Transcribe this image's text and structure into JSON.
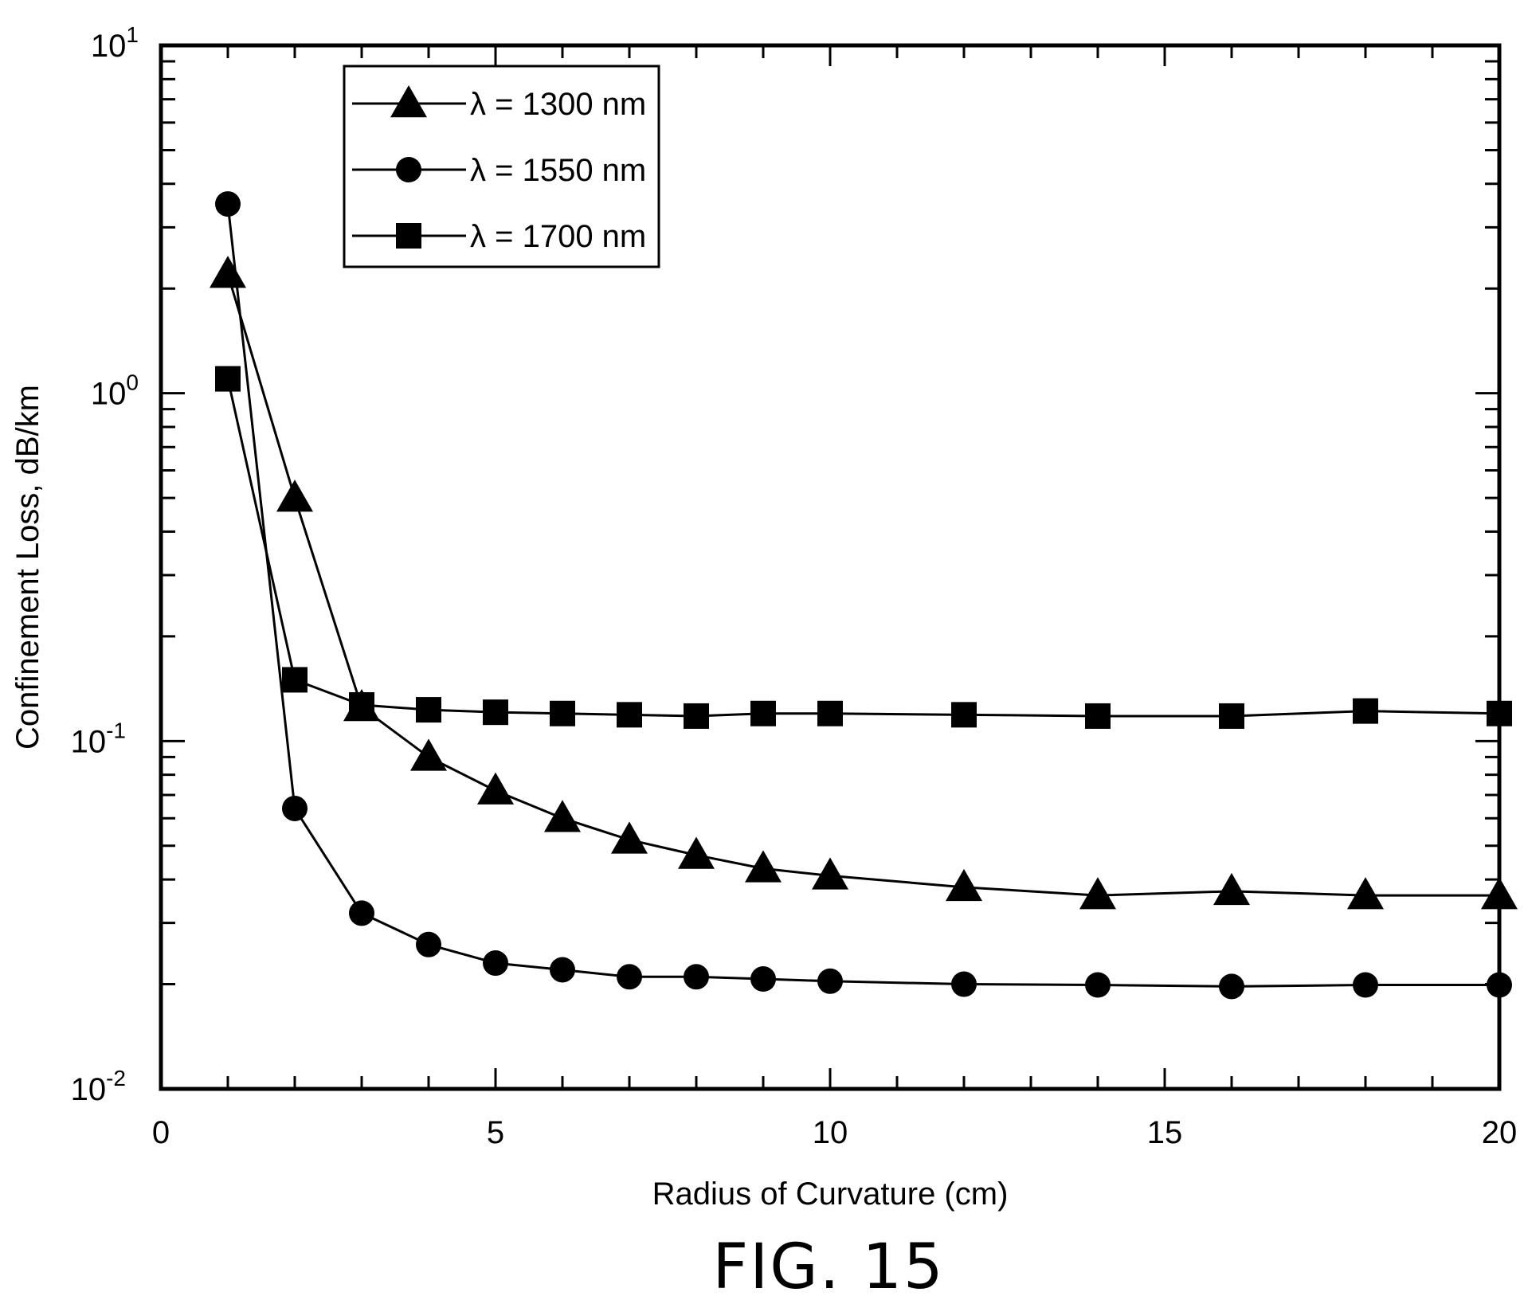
{
  "figure_caption": "FIG. 15",
  "chart_data": {
    "type": "line",
    "xlabel": "Radius of Curvature (cm)",
    "ylabel": "Confinement Loss, dB/km",
    "xlim": [
      0,
      20
    ],
    "ylim": [
      0.01,
      10
    ],
    "yscale": "log",
    "x_ticks": [
      0,
      5,
      10,
      15,
      20
    ],
    "y_ticks": [
      {
        "base": "10",
        "exp": "1",
        "value": 10
      },
      {
        "base": "10",
        "exp": "0",
        "value": 1
      },
      {
        "base": "10",
        "exp": "-1",
        "value": 0.1
      },
      {
        "base": "10",
        "exp": "-2",
        "value": 0.01
      }
    ],
    "grid": false,
    "legend_position": "top-left",
    "series": [
      {
        "name": "λ = 1300 nm",
        "marker": "triangle",
        "x": [
          1,
          2,
          3,
          4,
          5,
          6,
          7,
          8,
          9,
          10,
          12,
          14,
          16,
          18,
          20
        ],
        "y": [
          2.2,
          0.5,
          0.125,
          0.09,
          0.072,
          0.06,
          0.052,
          0.047,
          0.043,
          0.041,
          0.038,
          0.036,
          0.037,
          0.036,
          0.036
        ]
      },
      {
        "name": "λ = 1550 nm",
        "marker": "circle",
        "x": [
          1,
          2,
          3,
          4,
          5,
          6,
          7,
          8,
          9,
          10,
          12,
          14,
          16,
          18,
          20
        ],
        "y": [
          3.5,
          0.064,
          0.032,
          0.026,
          0.023,
          0.022,
          0.021,
          0.021,
          0.0207,
          0.0204,
          0.02,
          0.0199,
          0.0197,
          0.0199,
          0.0199
        ]
      },
      {
        "name": "λ = 1700 nm",
        "marker": "square",
        "x": [
          1,
          2,
          3,
          4,
          5,
          6,
          7,
          8,
          9,
          10,
          12,
          14,
          16,
          18,
          20
        ],
        "y": [
          1.1,
          0.15,
          0.127,
          0.123,
          0.121,
          0.12,
          0.119,
          0.118,
          0.12,
          0.12,
          0.119,
          0.118,
          0.118,
          0.122,
          0.12
        ]
      }
    ]
  }
}
